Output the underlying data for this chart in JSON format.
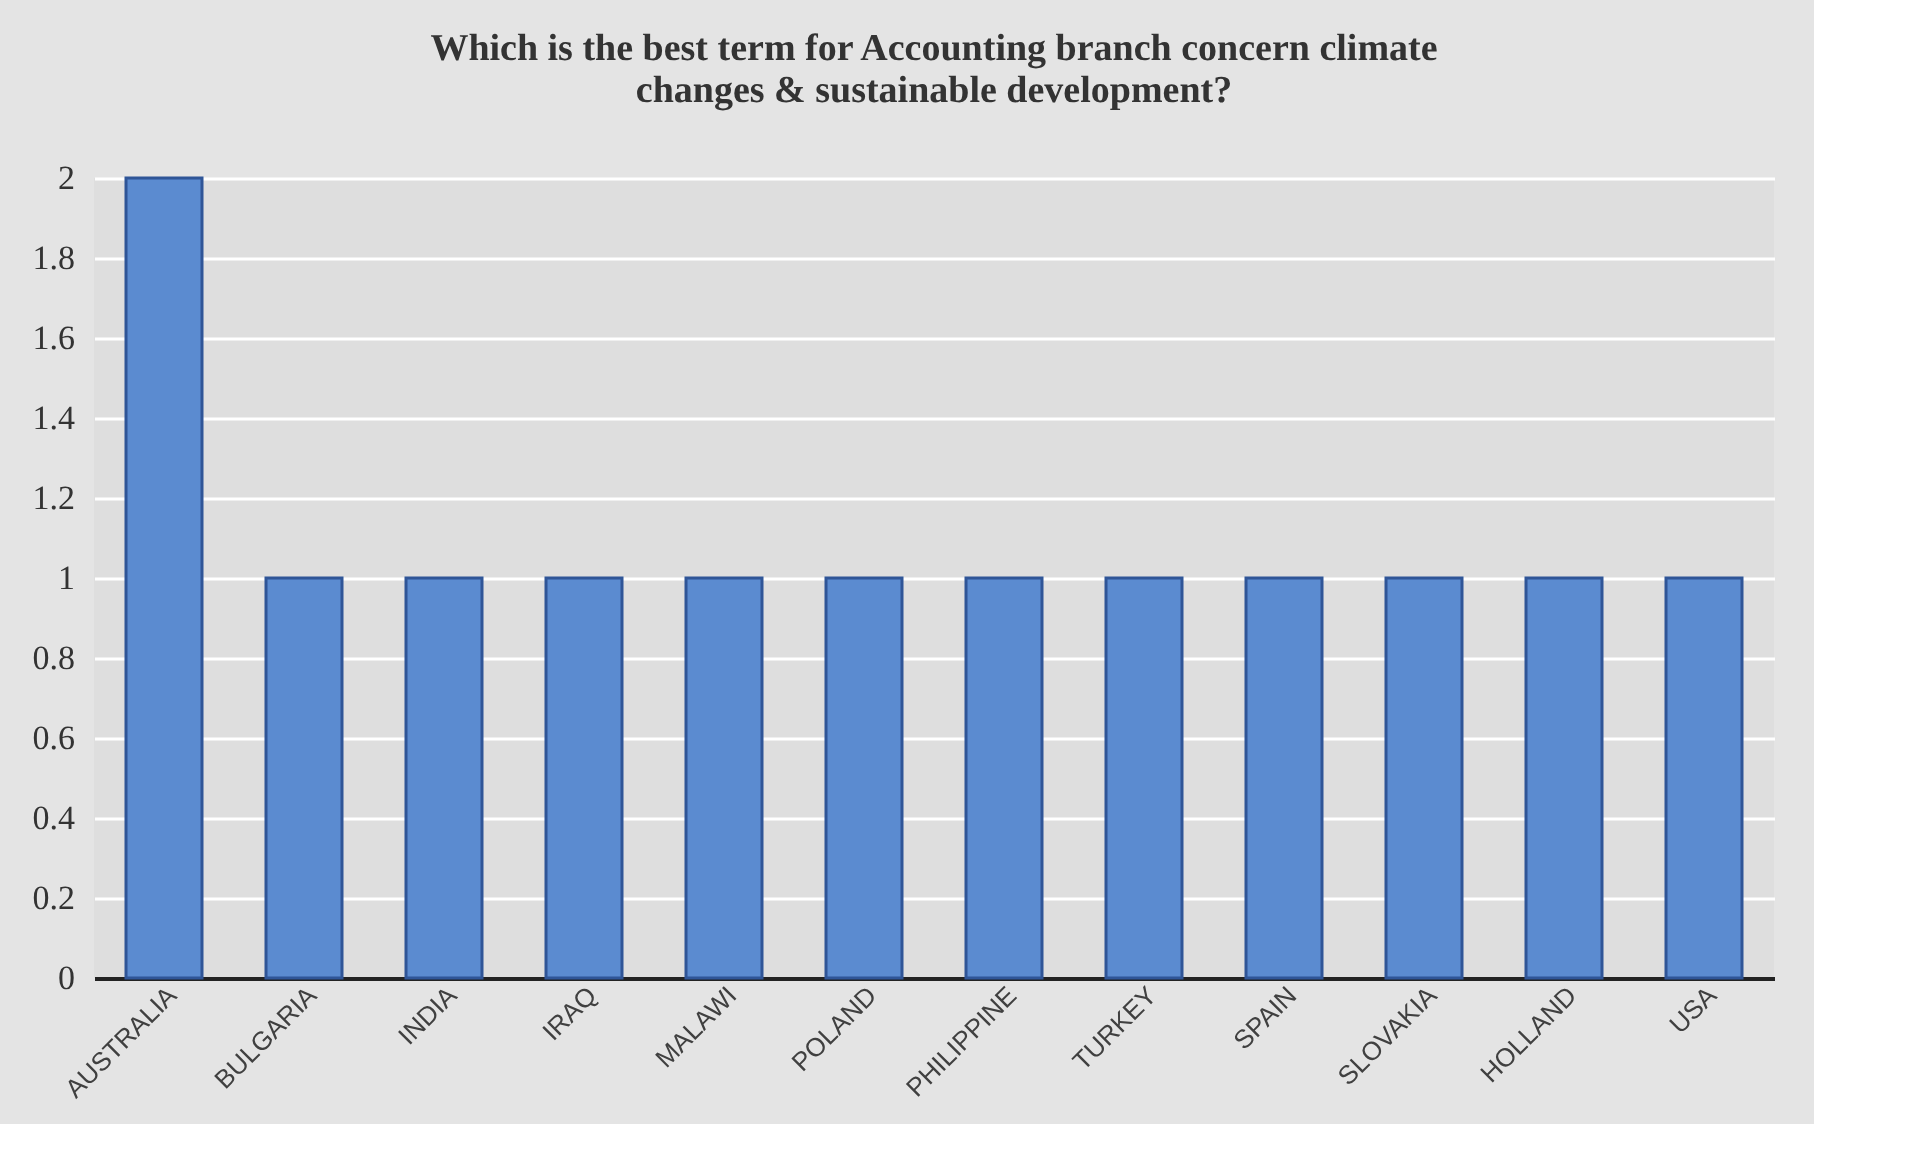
{
  "chart_data": {
    "type": "bar",
    "title": [
      "Which is the best term for Accounting branch concern climate",
      "changes & sustainable development?"
    ],
    "categories": [
      "AUSTRALIA",
      "BULGARIA",
      "INDIA",
      "IRAQ",
      "MALAWI",
      "POLAND",
      "PHILIPPINE",
      "TURKEY",
      "SPAIN",
      "SLOVAKIA",
      "HOLLAND",
      "USA"
    ],
    "values": [
      2,
      1,
      1,
      1,
      1,
      1,
      1,
      1,
      1,
      1,
      1,
      1
    ],
    "color": "#5b8bd0",
    "ylim": [
      0,
      2
    ],
    "yticks": [
      0,
      0.2,
      0.4,
      0.6,
      0.8,
      1,
      1.2,
      1.4,
      1.6,
      1.8,
      2
    ],
    "grid": "y"
  }
}
